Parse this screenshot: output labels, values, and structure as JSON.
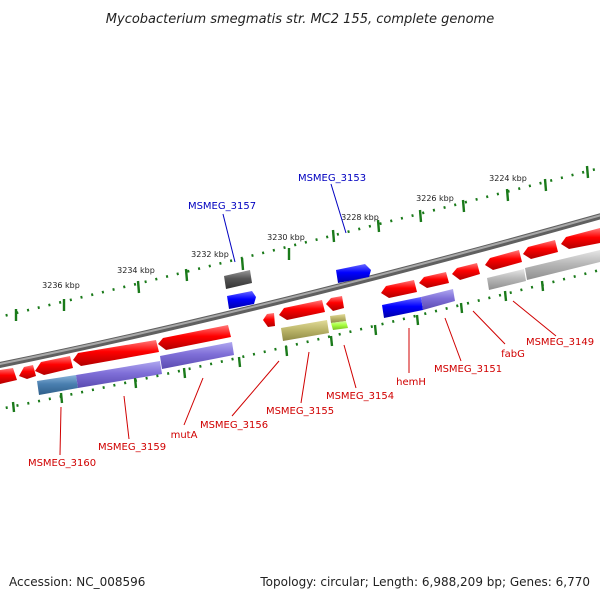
{
  "title": "Mycobacterium smegmatis str. MC2 155, complete genome",
  "footer": {
    "accession": "Accession: NC_008596",
    "summary": "Topology: circular; Length: 6,988,209 bp; Genes: 6,770"
  },
  "scale_ticks": [
    "3224 kbp",
    "3226 kbp",
    "3228 kbp",
    "3230 kbp",
    "3232 kbp",
    "3234 kbp",
    "3236 kbp"
  ],
  "gene_labels_top": [
    "MSMEG_3157",
    "MSMEG_3153"
  ],
  "gene_labels_bottom": [
    "MSMEG_3160",
    "MSMEG_3159",
    "mutA",
    "MSMEG_3156",
    "MSMEG_3155",
    "MSMEG_3154",
    "hemH",
    "MSMEG_3151",
    "fabG",
    "MSMEG_3149"
  ],
  "colors": {
    "cds": "#ff0000",
    "forward_feature": "#0000ff",
    "top_label": "#0000c0",
    "bottom_label": "#d00000",
    "backbone": "#808080",
    "ticks": "#1a7a1a",
    "cog_purple": "#7f6fd8",
    "cog_steel": "#4a7fb0",
    "cog_olive": "#bdb76b",
    "cog_lime": "#a8ff40",
    "cog_gray": "#b8b8b8",
    "cog_dark": "#555555"
  }
}
